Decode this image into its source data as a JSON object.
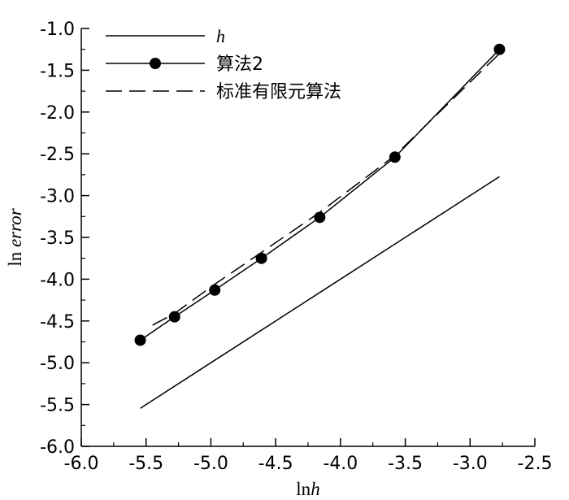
{
  "chart_data": {
    "type": "line",
    "xlabel": "lnh",
    "ylabel": "ln error",
    "xlim": [
      -6.0,
      -2.5
    ],
    "ylim": [
      -6.0,
      -1.0
    ],
    "x_ticks": [
      -6.0,
      -5.5,
      -5.0,
      -4.5,
      -4.0,
      -3.5,
      -3.0,
      -2.5
    ],
    "x_tick_labels": [
      "-6.0",
      "-5.5",
      "-5.0",
      "-4.5",
      "-4.0",
      "-3.5",
      "-3.0",
      "-2.5"
    ],
    "y_ticks": [
      -1.0,
      -1.5,
      -2.0,
      -2.5,
      -3.0,
      -3.5,
      -4.0,
      -4.5,
      -5.0,
      -5.5,
      -6.0
    ],
    "y_tick_labels": [
      "-1.0",
      "-1.5",
      "-2.0",
      "-2.5",
      "-3.0",
      "-3.5",
      "-4.0",
      "-4.5",
      "-5.0",
      "-5.5",
      "-6.0"
    ],
    "legend_position": "top-left",
    "grid": false,
    "series": [
      {
        "name": "h",
        "style": "solid",
        "marker": "none",
        "x": [
          -5.545,
          -2.773
        ],
        "y": [
          -5.545,
          -2.773
        ]
      },
      {
        "name": "算法2",
        "style": "solid",
        "marker": "circle",
        "x": [
          -5.545,
          -5.28,
          -4.97,
          -4.61,
          -4.16,
          -3.58,
          -2.773
        ],
        "y": [
          -4.73,
          -4.45,
          -4.13,
          -3.75,
          -3.26,
          -2.54,
          -1.25
        ]
      },
      {
        "name": "标准有限元算法",
        "style": "dashed",
        "marker": "none",
        "x": [
          -5.45,
          -5.28,
          -4.97,
          -4.61,
          -4.16,
          -3.58,
          -2.773
        ],
        "y": [
          -4.55,
          -4.41,
          -4.06,
          -3.68,
          -3.2,
          -2.52,
          -1.3
        ]
      }
    ]
  }
}
